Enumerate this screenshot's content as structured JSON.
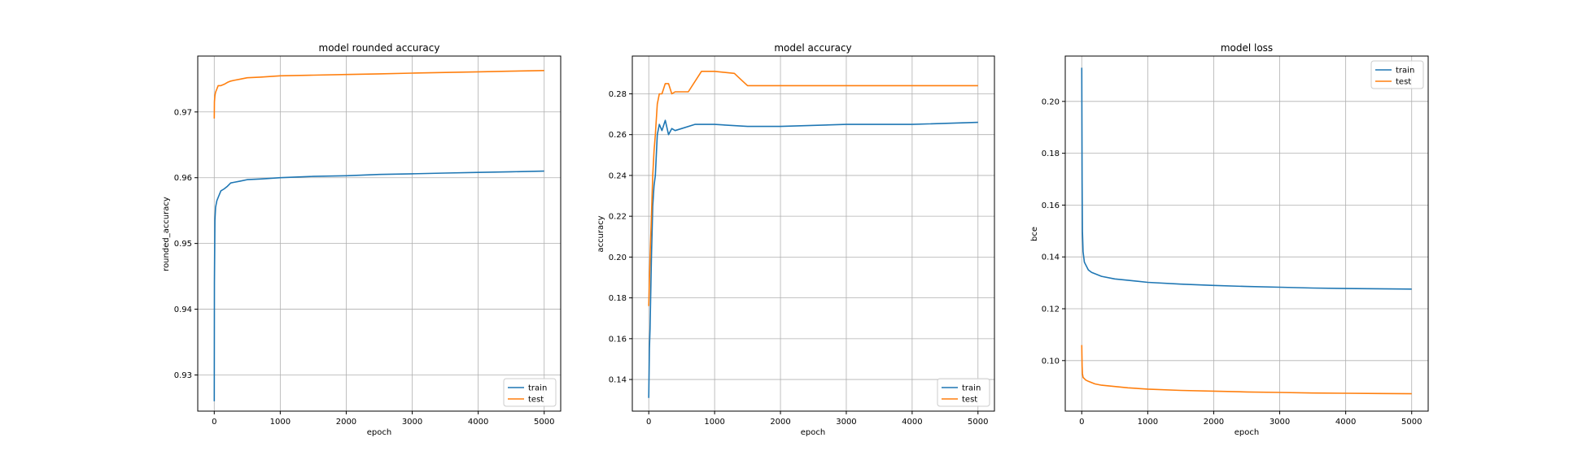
{
  "colors": {
    "train": "#1f77b4",
    "test": "#ff7f0e"
  },
  "chart_data": [
    {
      "type": "line",
      "title": "model rounded accuracy",
      "xlabel": "epoch",
      "ylabel": "rounded_accuracy",
      "xlim": [
        -250,
        5250
      ],
      "ylim": [
        0.9245,
        0.9785
      ],
      "xticks": [
        0,
        1000,
        2000,
        3000,
        4000,
        5000
      ],
      "yticks": [
        0.93,
        0.94,
        0.95,
        0.96,
        0.97
      ],
      "grid": true,
      "legend": "bottom-right",
      "series": [
        {
          "name": "train",
          "x": [
            0,
            3,
            10,
            20,
            40,
            60,
            100,
            150,
            200,
            250,
            300,
            400,
            500,
            700,
            1000,
            1500,
            2000,
            2500,
            3000,
            3500,
            4000,
            4500,
            5000
          ],
          "values": [
            0.926,
            0.944,
            0.9535,
            0.9555,
            0.9565,
            0.957,
            0.958,
            0.9583,
            0.9587,
            0.9592,
            0.9593,
            0.9595,
            0.9597,
            0.9598,
            0.96,
            0.9602,
            0.9603,
            0.9605,
            0.9606,
            0.9607,
            0.9608,
            0.9609,
            0.961
          ]
        },
        {
          "name": "test",
          "x": [
            0,
            3,
            10,
            20,
            40,
            60,
            100,
            150,
            200,
            250,
            300,
            400,
            500,
            700,
            1000,
            1500,
            2000,
            2500,
            3000,
            3500,
            4000,
            4500,
            5000
          ],
          "values": [
            0.969,
            0.9715,
            0.9725,
            0.973,
            0.9735,
            0.974,
            0.974,
            0.9742,
            0.9745,
            0.9747,
            0.9748,
            0.975,
            0.9752,
            0.9753,
            0.9755,
            0.9756,
            0.9757,
            0.9758,
            0.9759,
            0.976,
            0.9761,
            0.9762,
            0.9763
          ]
        }
      ]
    },
    {
      "type": "line",
      "title": "model accuracy",
      "xlabel": "epoch",
      "ylabel": "accuracy",
      "xlim": [
        -250,
        5250
      ],
      "ylim": [
        0.1245,
        0.2985
      ],
      "xticks": [
        0,
        1000,
        2000,
        3000,
        4000,
        5000
      ],
      "yticks": [
        0.14,
        0.16,
        0.18,
        0.2,
        0.22,
        0.24,
        0.26,
        0.28
      ],
      "grid": true,
      "legend": "bottom-right",
      "series": [
        {
          "name": "train",
          "x": [
            0,
            10,
            20,
            40,
            60,
            80,
            100,
            130,
            160,
            200,
            250,
            300,
            350,
            400,
            500,
            700,
            1000,
            1500,
            2000,
            3000,
            4000,
            5000
          ],
          "values": [
            0.131,
            0.155,
            0.165,
            0.2,
            0.225,
            0.235,
            0.24,
            0.26,
            0.265,
            0.262,
            0.267,
            0.26,
            0.263,
            0.262,
            0.263,
            0.265,
            0.265,
            0.264,
            0.264,
            0.265,
            0.265,
            0.266
          ]
        },
        {
          "name": "test",
          "x": [
            0,
            20,
            40,
            60,
            80,
            100,
            130,
            160,
            200,
            250,
            300,
            350,
            400,
            600,
            800,
            1000,
            1300,
            1400,
            1500,
            2000,
            3000,
            4000,
            5000
          ],
          "values": [
            0.176,
            0.2,
            0.22,
            0.24,
            0.252,
            0.26,
            0.275,
            0.28,
            0.28,
            0.285,
            0.285,
            0.28,
            0.281,
            0.281,
            0.291,
            0.291,
            0.29,
            0.287,
            0.284,
            0.284,
            0.284,
            0.284,
            0.284
          ]
        }
      ]
    },
    {
      "type": "line",
      "title": "model loss",
      "xlabel": "epoch",
      "ylabel": "bce",
      "xlim": [
        -250,
        5250
      ],
      "ylim": [
        0.0805,
        0.2175
      ],
      "xticks": [
        0,
        1000,
        2000,
        3000,
        4000,
        5000
      ],
      "yticks": [
        0.1,
        0.12,
        0.14,
        0.16,
        0.18,
        0.2
      ],
      "grid": true,
      "legend": "top-right",
      "series": [
        {
          "name": "train",
          "x": [
            0,
            5,
            10,
            20,
            40,
            60,
            100,
            150,
            200,
            300,
            500,
            700,
            1000,
            1500,
            2000,
            2500,
            3000,
            3500,
            4000,
            4500,
            5000
          ],
          "values": [
            0.213,
            0.17,
            0.15,
            0.142,
            0.138,
            0.137,
            0.135,
            0.134,
            0.1335,
            0.1325,
            0.1315,
            0.131,
            0.1302,
            0.1295,
            0.129,
            0.1286,
            0.1283,
            0.128,
            0.1278,
            0.1277,
            0.1276
          ]
        },
        {
          "name": "test",
          "x": [
            0,
            5,
            10,
            20,
            40,
            60,
            100,
            150,
            200,
            300,
            500,
            700,
            1000,
            1500,
            2000,
            2500,
            3000,
            3500,
            4000,
            4500,
            5000
          ],
          "values": [
            0.106,
            0.098,
            0.095,
            0.0935,
            0.093,
            0.0925,
            0.092,
            0.0915,
            0.091,
            0.0905,
            0.09,
            0.0895,
            0.089,
            0.0885,
            0.0882,
            0.0879,
            0.0877,
            0.0875,
            0.0874,
            0.0873,
            0.0872
          ]
        }
      ]
    }
  ]
}
